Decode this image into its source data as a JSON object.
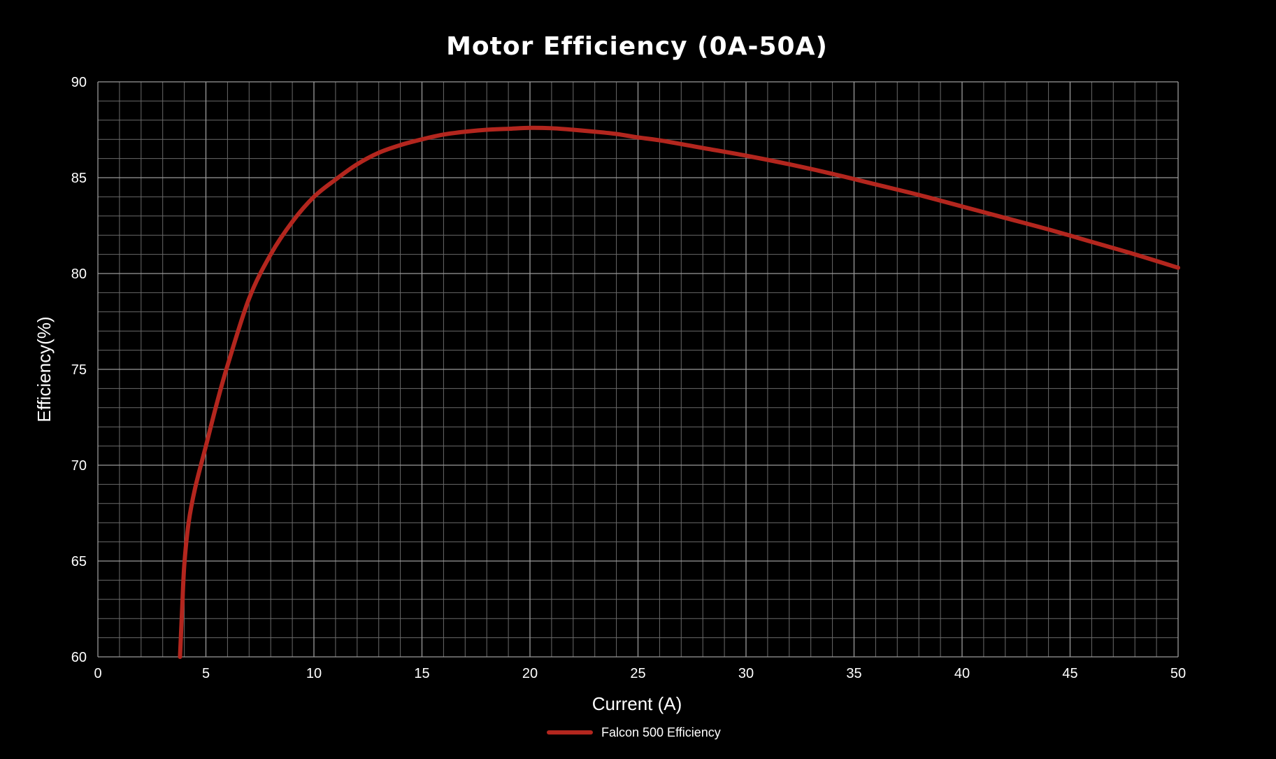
{
  "chart_data": {
    "type": "line",
    "title": "Motor Efficiency (0A-50A)",
    "xlabel": "Current (A)",
    "ylabel": "Efficiency(%)",
    "xlim": [
      0,
      50
    ],
    "ylim": [
      60,
      90
    ],
    "x_ticks": [
      0,
      5,
      10,
      15,
      20,
      25,
      30,
      35,
      40,
      45,
      50
    ],
    "y_ticks": [
      60,
      65,
      70,
      75,
      80,
      85,
      90
    ],
    "x_minor_step": 1,
    "y_minor_step": 1,
    "grid": true,
    "legend": {
      "placement": "bottom-center"
    },
    "series": [
      {
        "name": "Falcon 500 Efficiency",
        "color": "#b3261e",
        "x": [
          3.8,
          3.9,
          4.0,
          4.2,
          4.5,
          5.0,
          5.5,
          6.0,
          7.0,
          8.0,
          9.0,
          10.0,
          11.0,
          12.0,
          13.0,
          14.0,
          15.0,
          16.0,
          17.0,
          18.0,
          19.0,
          20.0,
          21.0,
          22.0,
          23.0,
          24.0,
          25.0,
          26.0,
          28.0,
          30.0,
          32.0,
          34.0,
          36.0,
          38.0,
          40.0,
          42.0,
          44.0,
          46.0,
          48.0,
          50.0
        ],
        "y": [
          60.0,
          62.5,
          64.8,
          67.0,
          68.8,
          71.0,
          73.2,
          75.2,
          78.7,
          81.0,
          82.7,
          84.0,
          84.9,
          85.7,
          86.3,
          86.7,
          87.0,
          87.25,
          87.4,
          87.5,
          87.55,
          87.6,
          87.58,
          87.5,
          87.4,
          87.28,
          87.1,
          86.95,
          86.55,
          86.15,
          85.7,
          85.2,
          84.65,
          84.1,
          83.5,
          82.9,
          82.3,
          81.65,
          81.0,
          80.3
        ]
      }
    ]
  }
}
